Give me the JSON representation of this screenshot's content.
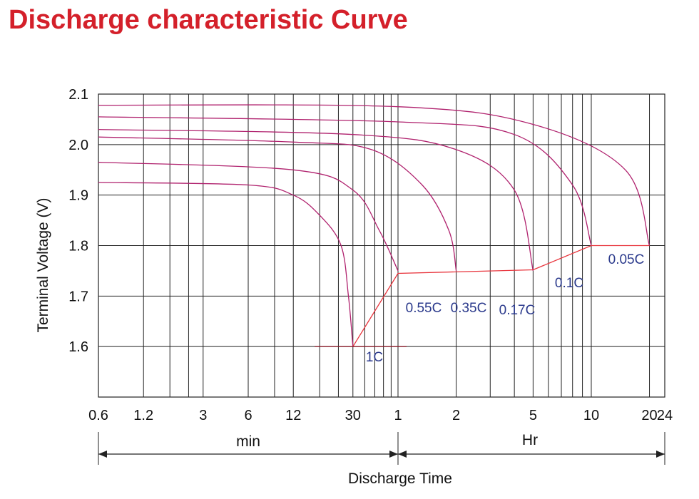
{
  "title": "Discharge characteristic Curve",
  "colors": {
    "title": "#d4202a",
    "curve": "#b0226e",
    "endline": "#e8343c",
    "label": "#2b3a8c",
    "grid": "#222222"
  },
  "chart_data": {
    "type": "line",
    "title": "Discharge characteristic Curve",
    "ylabel": "Terminal Voltage  (V)",
    "xlabel": "Discharge Time",
    "x_scale": "log",
    "x_unit_ranges": [
      {
        "label": "min",
        "from": "0.6 min",
        "to": "1 Hr"
      },
      {
        "label": "Hr",
        "from": "1 Hr",
        "to": "24 Hr"
      }
    ],
    "x_ticks": [
      "0.6",
      "1.2",
      "3",
      "6",
      "12",
      "30",
      "1",
      "2",
      "5",
      "10",
      "20",
      "24"
    ],
    "y_ticks": [
      "2.1",
      "2.0",
      "1.9",
      "1.8",
      "1.7",
      "1.6"
    ],
    "ylim": [
      1.5,
      2.1
    ],
    "xlim_minutes": [
      0.6,
      1440
    ],
    "grid": true,
    "series": [
      {
        "name": "1C",
        "points": [
          [
            0.6,
            1.925
          ],
          [
            6,
            1.92
          ],
          [
            12,
            1.9
          ],
          [
            18,
            1.86
          ],
          [
            25,
            1.8
          ],
          [
            28,
            1.7
          ],
          [
            30,
            1.6
          ]
        ]
      },
      {
        "name": "0.55C",
        "points": [
          [
            0.6,
            1.965
          ],
          [
            12,
            1.95
          ],
          [
            30,
            1.91
          ],
          [
            45,
            1.83
          ],
          [
            60,
            1.75
          ]
        ]
      },
      {
        "name": "0.35C",
        "points": [
          [
            0.6,
            2.015
          ],
          [
            12,
            2.005
          ],
          [
            40,
            1.99
          ],
          [
            80,
            1.92
          ],
          [
            110,
            1.83
          ],
          [
            120,
            1.75
          ]
        ]
      },
      {
        "name": "0.17C",
        "points": [
          [
            0.6,
            2.03
          ],
          [
            30,
            2.02
          ],
          [
            120,
            1.99
          ],
          [
            240,
            1.91
          ],
          [
            300,
            1.75
          ]
        ]
      },
      {
        "name": "0.1C",
        "points": [
          [
            0.6,
            2.055
          ],
          [
            60,
            2.045
          ],
          [
            240,
            2.02
          ],
          [
            480,
            1.92
          ],
          [
            600,
            1.8
          ]
        ]
      },
      {
        "name": "0.05C",
        "points": [
          [
            0.6,
            2.078
          ],
          [
            60,
            2.075
          ],
          [
            300,
            2.04
          ],
          [
            900,
            1.95
          ],
          [
            1200,
            1.8
          ]
        ]
      }
    ],
    "end_voltage_line": [
      [
        30,
        1.6
      ],
      [
        60,
        1.745
      ],
      [
        300,
        1.752
      ],
      [
        600,
        1.8
      ],
      [
        1200,
        1.8
      ]
    ],
    "cutoff_segment": [
      [
        12,
        1.6
      ],
      [
        60,
        1.6
      ]
    ],
    "annotations": [
      "1C",
      "0.55C",
      "0.35C",
      "0.17C",
      "0.1C",
      "0.05C"
    ],
    "unit_labels": {
      "min": "min",
      "hr": "Hr"
    }
  }
}
